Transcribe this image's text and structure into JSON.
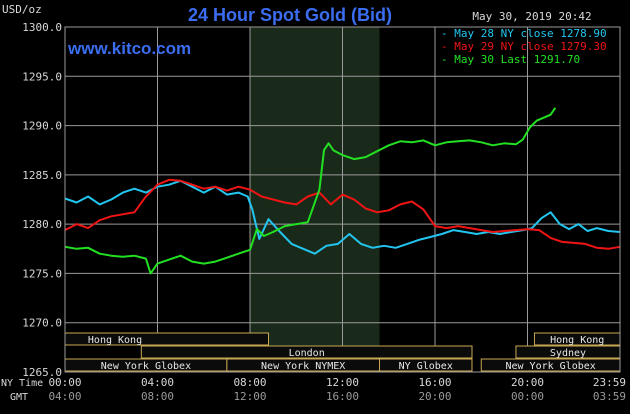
{
  "header": {
    "unit": "USD/oz",
    "title": "24 Hour Spot Gold (Bid)",
    "datetime": "May 30, 2019 20:42",
    "website": "www.kitco.com"
  },
  "legend": [
    {
      "marker": "-",
      "label": "May 28 NY close",
      "value": "1278.90",
      "color": "#22c6f0"
    },
    {
      "marker": "-",
      "label": "May 29 NY close",
      "value": "1279.30",
      "color": "#f01414"
    },
    {
      "marker": "-",
      "label": "May 30 Last",
      "value": "1291.70",
      "color": "#22e022"
    }
  ],
  "axis": {
    "ny_time_label": "NY Time",
    "gmt_label": "GMT",
    "ny_ticks": [
      "00:00",
      "04:00",
      "08:00",
      "12:00",
      "16:00",
      "20:00",
      "23:59"
    ],
    "gmt_ticks": [
      "04:00",
      "08:00",
      "12:00",
      "16:00",
      "20:00",
      "00:00",
      "03:59"
    ]
  },
  "sessions": [
    {
      "label": "Hong Kong",
      "row": 0
    },
    {
      "label": "London",
      "row": 1
    },
    {
      "label": "New York Globex",
      "row": 2
    },
    {
      "label": "New York NYMEX",
      "row": 2
    },
    {
      "label": "NY Globex",
      "row": 2
    },
    {
      "label": "Hong Kong",
      "row": 0
    },
    {
      "label": "Sydney",
      "row": 1
    },
    {
      "label": "New York Globex",
      "row": 2
    }
  ],
  "chart_data": {
    "type": "line",
    "title": "24 Hour Spot Gold (Bid)",
    "ylabel": "USD/oz",
    "xlabel": "NY Time / GMT",
    "ylim": [
      1265,
      1300
    ],
    "xlim": [
      0,
      24
    ],
    "y_ticks": [
      "1300.0",
      "1295.0",
      "1290.0",
      "1285.0",
      "1280.0",
      "1275.0",
      "1270.0",
      "1265.0"
    ],
    "grid": true,
    "legend_position": "top-right",
    "highlight_x_range": [
      8,
      13.6
    ],
    "series": [
      {
        "name": "May 28 NY close",
        "color": "#22c6f0",
        "x": [
          0,
          0.5,
          1,
          1.5,
          2,
          2.5,
          3,
          3.5,
          4,
          4.5,
          5,
          5.5,
          6,
          6.5,
          7,
          7.5,
          7.9,
          8.1,
          8.4,
          8.8,
          9.3,
          9.8,
          10.3,
          10.8,
          11.3,
          11.8,
          12.3,
          12.8,
          13.3,
          13.8,
          14.3,
          14.8,
          15.3,
          15.8,
          16.3,
          16.8,
          17.3,
          17.8,
          18.3,
          18.8,
          19.3,
          19.8,
          20.2,
          20.6,
          21,
          21.4,
          21.8,
          22.2,
          22.6,
          23,
          23.5,
          24
        ],
        "y": [
          1282.6,
          1282.2,
          1282.8,
          1282.0,
          1282.5,
          1283.2,
          1283.6,
          1283.2,
          1283.8,
          1284.0,
          1284.4,
          1283.8,
          1283.2,
          1283.8,
          1283.0,
          1283.2,
          1282.8,
          1281.5,
          1278.5,
          1280.5,
          1279.2,
          1278.0,
          1277.5,
          1277.0,
          1277.8,
          1278.0,
          1279.0,
          1278.0,
          1277.6,
          1277.8,
          1277.6,
          1278.0,
          1278.4,
          1278.7,
          1279.0,
          1279.4,
          1279.2,
          1279.0,
          1279.2,
          1279.0,
          1279.2,
          1279.4,
          1279.6,
          1280.6,
          1281.2,
          1280.0,
          1279.5,
          1280.0,
          1279.3,
          1279.6,
          1279.3,
          1279.2
        ]
      },
      {
        "name": "May 29 NY close",
        "color": "#f01414",
        "x": [
          0,
          0.5,
          1,
          1.5,
          2,
          2.5,
          3,
          3.5,
          4,
          4.5,
          5,
          5.5,
          6,
          6.5,
          7,
          7.5,
          8,
          8.5,
          9,
          9.5,
          10,
          10.5,
          11,
          11.5,
          12,
          12.5,
          13,
          13.5,
          14,
          14.5,
          15,
          15.5,
          16,
          16.5,
          17,
          17.5,
          18,
          18.5,
          19,
          19.5,
          20,
          20.5,
          21,
          21.5,
          22,
          22.5,
          23,
          23.5,
          24
        ],
        "y": [
          1279.4,
          1280.0,
          1279.6,
          1280.4,
          1280.8,
          1281.0,
          1281.2,
          1282.8,
          1284.0,
          1284.5,
          1284.4,
          1284.0,
          1283.6,
          1283.8,
          1283.4,
          1283.8,
          1283.5,
          1282.8,
          1282.5,
          1282.2,
          1282.0,
          1282.8,
          1283.2,
          1282.0,
          1283.0,
          1282.5,
          1281.6,
          1281.2,
          1281.4,
          1282.0,
          1282.3,
          1281.5,
          1279.8,
          1279.6,
          1279.8,
          1279.6,
          1279.4,
          1279.2,
          1279.3,
          1279.4,
          1279.5,
          1279.4,
          1278.6,
          1278.2,
          1278.1,
          1278.0,
          1277.6,
          1277.5,
          1277.7
        ]
      },
      {
        "name": "May 30 Last",
        "color": "#22e022",
        "x": [
          0,
          0.5,
          1,
          1.5,
          2,
          2.5,
          3,
          3.5,
          3.7,
          4,
          4.5,
          5,
          5.5,
          6,
          6.5,
          7,
          7.5,
          8,
          8.3,
          8.6,
          9,
          9.5,
          10,
          10.5,
          11,
          11.2,
          11.4,
          11.6,
          12,
          12.5,
          13,
          13.5,
          14,
          14.5,
          15,
          15.5,
          16,
          16.5,
          17,
          17.5,
          18,
          18.5,
          19,
          19.5,
          19.8,
          20.1,
          20.4,
          20.7,
          21,
          21.2
        ],
        "y": [
          1277.7,
          1277.5,
          1277.6,
          1277.0,
          1276.8,
          1276.7,
          1276.8,
          1276.5,
          1275.0,
          1276.0,
          1276.4,
          1276.8,
          1276.2,
          1276.0,
          1276.2,
          1276.6,
          1277.0,
          1277.4,
          1279.5,
          1278.8,
          1279.2,
          1279.8,
          1280.0,
          1280.2,
          1283.5,
          1287.5,
          1288.2,
          1287.5,
          1287.0,
          1286.6,
          1286.8,
          1287.4,
          1288.0,
          1288.4,
          1288.3,
          1288.5,
          1288.0,
          1288.3,
          1288.4,
          1288.5,
          1288.3,
          1288.0,
          1288.2,
          1288.1,
          1288.6,
          1289.8,
          1290.5,
          1290.8,
          1291.1,
          1291.8
        ]
      }
    ]
  }
}
